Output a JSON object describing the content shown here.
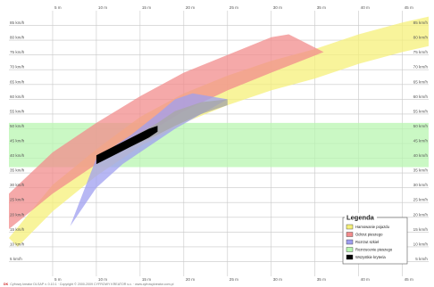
{
  "chart_data": {
    "type": "area",
    "x_unit": "m",
    "y_unit": "km/h",
    "xlim": [
      0,
      48
    ],
    "ylim": [
      0,
      90
    ],
    "x_ticks": [
      5,
      10,
      15,
      20,
      25,
      30,
      35,
      40,
      45
    ],
    "x_tick_labels": [
      "5 m",
      "10 m",
      "15 m",
      "20 m",
      "25 m",
      "30 m",
      "35 m",
      "40 m",
      "45 m"
    ],
    "y_ticks": [
      5,
      10,
      15,
      20,
      25,
      30,
      35,
      40,
      45,
      50,
      55,
      60,
      65,
      70,
      75,
      80,
      85
    ],
    "y_tick_labels": [
      "5 km/h",
      "10 km/h",
      "15 km/h",
      "20 km/h",
      "25 km/h",
      "30 km/h",
      "35 km/h",
      "40 km/h",
      "45 km/h",
      "50 km/h",
      "55 km/h",
      "60 km/h",
      "65 km/h",
      "70 km/h",
      "75 km/h",
      "80 km/h",
      "85 km/h"
    ],
    "grid": true,
    "legend_position": "bottom-right",
    "legend_title": "Legenda",
    "series": [
      {
        "name": "Hamowanie pojazdu",
        "color": "#f5f07a",
        "upper": [
          [
            0,
            13
          ],
          [
            5,
            31
          ],
          [
            10,
            43
          ],
          [
            15,
            54
          ],
          [
            20,
            62
          ],
          [
            25,
            68
          ],
          [
            30,
            73
          ],
          [
            35,
            77
          ],
          [
            40,
            82
          ],
          [
            45,
            86
          ],
          [
            48,
            88
          ]
        ],
        "lower": [
          [
            1,
            10
          ],
          [
            5,
            22
          ],
          [
            10,
            34
          ],
          [
            15,
            44
          ],
          [
            20,
            52
          ],
          [
            25,
            58
          ],
          [
            30,
            63
          ],
          [
            35,
            67
          ],
          [
            40,
            72
          ],
          [
            45,
            76
          ],
          [
            48,
            78
          ]
        ]
      },
      {
        "name": "Odrzut pieszego",
        "color": "#f28c8c",
        "upper": [
          [
            0,
            28
          ],
          [
            5,
            42
          ],
          [
            10,
            52
          ],
          [
            15,
            61
          ],
          [
            20,
            69
          ],
          [
            25,
            75
          ],
          [
            30,
            81
          ],
          [
            32,
            82
          ]
        ],
        "lower": [
          [
            0,
            16
          ],
          [
            5,
            28
          ],
          [
            10,
            38
          ],
          [
            15,
            47
          ],
          [
            20,
            56
          ],
          [
            25,
            63
          ],
          [
            30,
            69
          ],
          [
            36,
            76
          ]
        ]
      },
      {
        "name": "Rozrzut szkieł",
        "color": "#9f9ff0",
        "upper": [
          [
            10,
            40
          ],
          [
            14,
            48
          ],
          [
            17,
            55
          ],
          [
            19,
            60
          ],
          [
            21,
            62
          ]
        ],
        "lower": [
          [
            7,
            17
          ],
          [
            10,
            30
          ],
          [
            13,
            38
          ],
          [
            16,
            44
          ],
          [
            19,
            50
          ],
          [
            22,
            55
          ],
          [
            25,
            60
          ]
        ]
      },
      {
        "name": "Rozrzucenie pieszego",
        "color": "#b8f5b0",
        "upper": [
          [
            0,
            52
          ],
          [
            48,
            52
          ]
        ],
        "lower": [
          [
            0,
            37
          ],
          [
            48,
            37
          ]
        ]
      },
      {
        "name": "Wszystkie kryteria",
        "color": "#000000",
        "upper": [
          [
            10,
            41
          ],
          [
            12,
            44
          ],
          [
            14,
            47
          ],
          [
            16,
            50
          ],
          [
            17,
            51
          ]
        ],
        "lower": [
          [
            10,
            38
          ],
          [
            12,
            41
          ],
          [
            14,
            44
          ],
          [
            16,
            47
          ],
          [
            17,
            49
          ]
        ]
      }
    ],
    "grey_region": {
      "color": "#a8a8a8",
      "upper": [
        [
          14,
          47
        ],
        [
          17,
          52
        ],
        [
          19,
          56
        ],
        [
          22,
          59
        ],
        [
          25,
          60
        ]
      ],
      "lower": [
        [
          14,
          44
        ],
        [
          17,
          48
        ],
        [
          19,
          51
        ],
        [
          22,
          55
        ],
        [
          25,
          58
        ]
      ]
    }
  },
  "footer": {
    "logo": "DK",
    "text": "Cyfrowy kreator DLSAP v. 0.10.1 · Copyright © 2000-2009 CYFROWY KREATOR s.c. · www.cyfrowykreator.com.pl"
  }
}
